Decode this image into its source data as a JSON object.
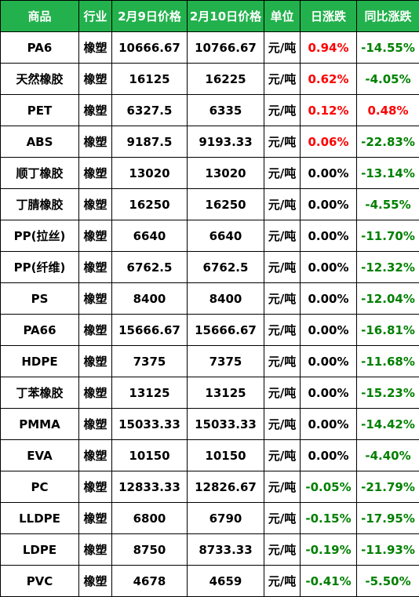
{
  "headers": [
    "商品",
    "行业",
    "2月9日价格",
    "2月10日价格",
    "单位",
    "日涨跌",
    "同比涨跌"
  ],
  "colors": {
    "header_bg": "#22b14c",
    "up": "#ff0000",
    "down": "#008000"
  },
  "rows": [
    {
      "name": "PA6",
      "industry": "橡塑",
      "p9": "10666.67",
      "p10": "10766.67",
      "unit": "元/吨",
      "day": "0.94%",
      "day_dir": "up",
      "yoy": "-14.55%",
      "yoy_dir": "down"
    },
    {
      "name": "天然橡胶",
      "industry": "橡塑",
      "p9": "16125",
      "p10": "16225",
      "unit": "元/吨",
      "day": "0.62%",
      "day_dir": "up",
      "yoy": "-4.05%",
      "yoy_dir": "down"
    },
    {
      "name": "PET",
      "industry": "橡塑",
      "p9": "6327.5",
      "p10": "6335",
      "unit": "元/吨",
      "day": "0.12%",
      "day_dir": "up",
      "yoy": "0.48%",
      "yoy_dir": "up"
    },
    {
      "name": "ABS",
      "industry": "橡塑",
      "p9": "9187.5",
      "p10": "9193.33",
      "unit": "元/吨",
      "day": "0.06%",
      "day_dir": "up",
      "yoy": "-22.83%",
      "yoy_dir": "down"
    },
    {
      "name": "顺丁橡胶",
      "industry": "橡塑",
      "p9": "13020",
      "p10": "13020",
      "unit": "元/吨",
      "day": "0.00%",
      "day_dir": "flat",
      "yoy": "-13.14%",
      "yoy_dir": "down"
    },
    {
      "name": "丁腈橡胶",
      "industry": "橡塑",
      "p9": "16250",
      "p10": "16250",
      "unit": "元/吨",
      "day": "0.00%",
      "day_dir": "flat",
      "yoy": "-4.55%",
      "yoy_dir": "down"
    },
    {
      "name": "PP(拉丝)",
      "industry": "橡塑",
      "p9": "6640",
      "p10": "6640",
      "unit": "元/吨",
      "day": "0.00%",
      "day_dir": "flat",
      "yoy": "-11.70%",
      "yoy_dir": "down"
    },
    {
      "name": "PP(纤维)",
      "industry": "橡塑",
      "p9": "6762.5",
      "p10": "6762.5",
      "unit": "元/吨",
      "day": "0.00%",
      "day_dir": "flat",
      "yoy": "-12.32%",
      "yoy_dir": "down"
    },
    {
      "name": "PS",
      "industry": "橡塑",
      "p9": "8400",
      "p10": "8400",
      "unit": "元/吨",
      "day": "0.00%",
      "day_dir": "flat",
      "yoy": "-12.04%",
      "yoy_dir": "down"
    },
    {
      "name": "PA66",
      "industry": "橡塑",
      "p9": "15666.67",
      "p10": "15666.67",
      "unit": "元/吨",
      "day": "0.00%",
      "day_dir": "flat",
      "yoy": "-16.81%",
      "yoy_dir": "down"
    },
    {
      "name": "HDPE",
      "industry": "橡塑",
      "p9": "7375",
      "p10": "7375",
      "unit": "元/吨",
      "day": "0.00%",
      "day_dir": "flat",
      "yoy": "-11.68%",
      "yoy_dir": "down"
    },
    {
      "name": "丁苯橡胶",
      "industry": "橡塑",
      "p9": "13125",
      "p10": "13125",
      "unit": "元/吨",
      "day": "0.00%",
      "day_dir": "flat",
      "yoy": "-15.23%",
      "yoy_dir": "down"
    },
    {
      "name": "PMMA",
      "industry": "橡塑",
      "p9": "15033.33",
      "p10": "15033.33",
      "unit": "元/吨",
      "day": "0.00%",
      "day_dir": "flat",
      "yoy": "-14.42%",
      "yoy_dir": "down"
    },
    {
      "name": "EVA",
      "industry": "橡塑",
      "p9": "10150",
      "p10": "10150",
      "unit": "元/吨",
      "day": "0.00%",
      "day_dir": "flat",
      "yoy": "-4.40%",
      "yoy_dir": "down"
    },
    {
      "name": "PC",
      "industry": "橡塑",
      "p9": "12833.33",
      "p10": "12826.67",
      "unit": "元/吨",
      "day": "-0.05%",
      "day_dir": "down",
      "yoy": "-21.79%",
      "yoy_dir": "down"
    },
    {
      "name": "LLDPE",
      "industry": "橡塑",
      "p9": "6800",
      "p10": "6790",
      "unit": "元/吨",
      "day": "-0.15%",
      "day_dir": "down",
      "yoy": "-17.95%",
      "yoy_dir": "down"
    },
    {
      "name": "LDPE",
      "industry": "橡塑",
      "p9": "8750",
      "p10": "8733.33",
      "unit": "元/吨",
      "day": "-0.19%",
      "day_dir": "down",
      "yoy": "-11.93%",
      "yoy_dir": "down"
    },
    {
      "name": "PVC",
      "industry": "橡塑",
      "p9": "4678",
      "p10": "4659",
      "unit": "元/吨",
      "day": "-0.41%",
      "day_dir": "down",
      "yoy": "-5.50%",
      "yoy_dir": "down"
    }
  ]
}
